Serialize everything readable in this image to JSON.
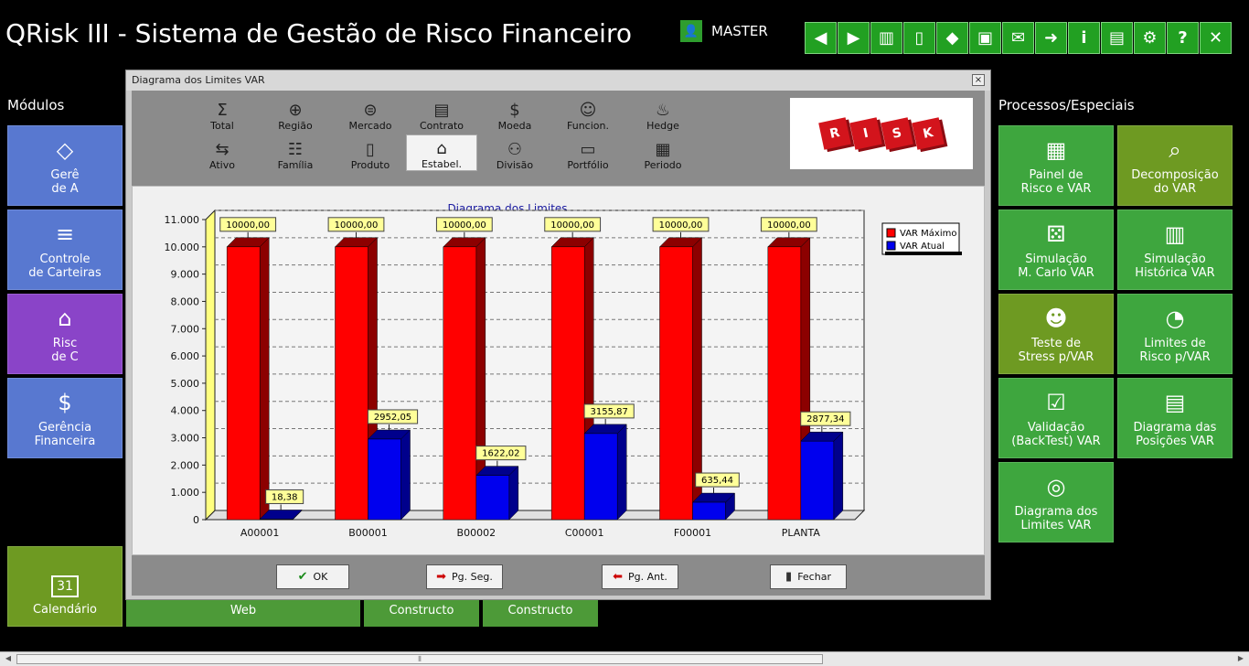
{
  "app": {
    "title": "QRisk III - Sistema de Gestão de Risco Financeiro",
    "user": "MASTER"
  },
  "toolbar": [
    {
      "name": "back-button",
      "icon": "◀"
    },
    {
      "name": "forward-button",
      "icon": "▶"
    },
    {
      "name": "traffic-light-button",
      "icon": "▥"
    },
    {
      "name": "signal-button",
      "icon": "▯"
    },
    {
      "name": "fill-button",
      "icon": "◆"
    },
    {
      "name": "monitor-button",
      "icon": "▣"
    },
    {
      "name": "mail-button",
      "icon": "✉"
    },
    {
      "name": "transfer-button",
      "icon": "➜"
    },
    {
      "name": "info-button",
      "icon": "i"
    },
    {
      "name": "document-button",
      "icon": "▤"
    },
    {
      "name": "settings-button",
      "icon": "⚙"
    },
    {
      "name": "help-button",
      "icon": "?"
    },
    {
      "name": "close-button",
      "icon": "✕"
    }
  ],
  "left": {
    "title": "Módulos",
    "tiles": [
      {
        "label1": "Gerê",
        "label2": "de A",
        "icon": "◇"
      },
      {
        "label1": "Controle",
        "label2": "de Carteiras",
        "icon": "≡"
      },
      {
        "label1": "Risc",
        "label2": "de  C",
        "icon": "⌂"
      },
      {
        "label1": "Gerência",
        "label2": "Financeira",
        "icon": "$"
      }
    ],
    "calendar": {
      "label": "Calendário",
      "icon": "31"
    }
  },
  "bottom_tiles": [
    "Web",
    "Constructo",
    "Constructo"
  ],
  "right": {
    "title": "Processos/Especiais",
    "tiles": [
      {
        "label1": "Painel de",
        "label2": "Risco e VAR",
        "icon": "▦"
      },
      {
        "label1": "Decomposição",
        "label2": "do VAR",
        "icon": "⌕"
      },
      {
        "label1": "Simulação",
        "label2": "M. Carlo VAR",
        "icon": "⚄"
      },
      {
        "label1": "Simulação",
        "label2": "Histórica VAR",
        "icon": "▥"
      },
      {
        "label1": "Teste de",
        "label2": "Stress p/VAR",
        "icon": "☻"
      },
      {
        "label1": "Limites de",
        "label2": "Risco p/VAR",
        "icon": "◔"
      },
      {
        "label1": "Validação",
        "label2": "(BackTest) VAR",
        "icon": "☑"
      },
      {
        "label1": "Diagrama das",
        "label2": "Posições VAR",
        "icon": "▤"
      },
      {
        "label1": "Diagrama dos",
        "label2": "Limites VAR",
        "icon": "◎"
      }
    ]
  },
  "dialog": {
    "title": "Diagrama dos Limites VAR",
    "close_icon": "×",
    "row1": [
      {
        "label": "Total",
        "icon": "Σ"
      },
      {
        "label": "Região",
        "icon": "⊕"
      },
      {
        "label": "Mercado",
        "icon": "⊜"
      },
      {
        "label": "Contrato",
        "icon": "▤"
      },
      {
        "label": "Moeda",
        "icon": "$"
      },
      {
        "label": "Funcion.",
        "icon": "☺"
      },
      {
        "label": "Hedge",
        "icon": "♨"
      }
    ],
    "row2": [
      {
        "label": "Ativo",
        "icon": "⇆"
      },
      {
        "label": "Família",
        "icon": "☷"
      },
      {
        "label": "Produto",
        "icon": "▯"
      },
      {
        "label": "Estabel.",
        "icon": "⌂"
      },
      {
        "label": "Divisão",
        "icon": "⚇"
      },
      {
        "label": "Portfólio",
        "icon": "▭"
      },
      {
        "label": "Periodo",
        "icon": "▦"
      }
    ],
    "risk_logo": [
      "R",
      "I",
      "S",
      "K"
    ],
    "buttons": [
      {
        "label": "OK",
        "icon": "✔"
      },
      {
        "label": "Pg. Seg.",
        "icon": "➡"
      },
      {
        "label": "Pg. Ant.",
        "icon": "⬅"
      },
      {
        "label": "Fechar",
        "icon": "▮"
      }
    ]
  },
  "chart_data": {
    "type": "bar",
    "title": "Diagrama dos Limites",
    "categories": [
      "A00001",
      "B00001",
      "B00002",
      "C00001",
      "F00001",
      "PLANTA"
    ],
    "series": [
      {
        "name": "VAR Máximo",
        "color": "#ff0000",
        "values": [
          10000.0,
          10000.0,
          10000.0,
          10000.0,
          10000.0,
          10000.0
        ],
        "labels": [
          "10000,00",
          "10000,00",
          "10000,00",
          "10000,00",
          "10000,00",
          "10000,00"
        ]
      },
      {
        "name": "VAR Atual",
        "color": "#0000ee",
        "values": [
          18.38,
          2952.05,
          1622.02,
          3155.87,
          635.44,
          2877.34
        ],
        "labels": [
          "18,38",
          "2952,05",
          "1622,02",
          "3155,87",
          "635,44",
          "2877,34"
        ]
      }
    ],
    "ylim": [
      0,
      11000
    ],
    "yticks": [
      "0",
      "1.000",
      "2.000",
      "3.000",
      "4.000",
      "5.000",
      "6.000",
      "7.000",
      "8.000",
      "9.000",
      "10.000",
      "11.000"
    ],
    "grid": true,
    "legend": "top-right"
  }
}
